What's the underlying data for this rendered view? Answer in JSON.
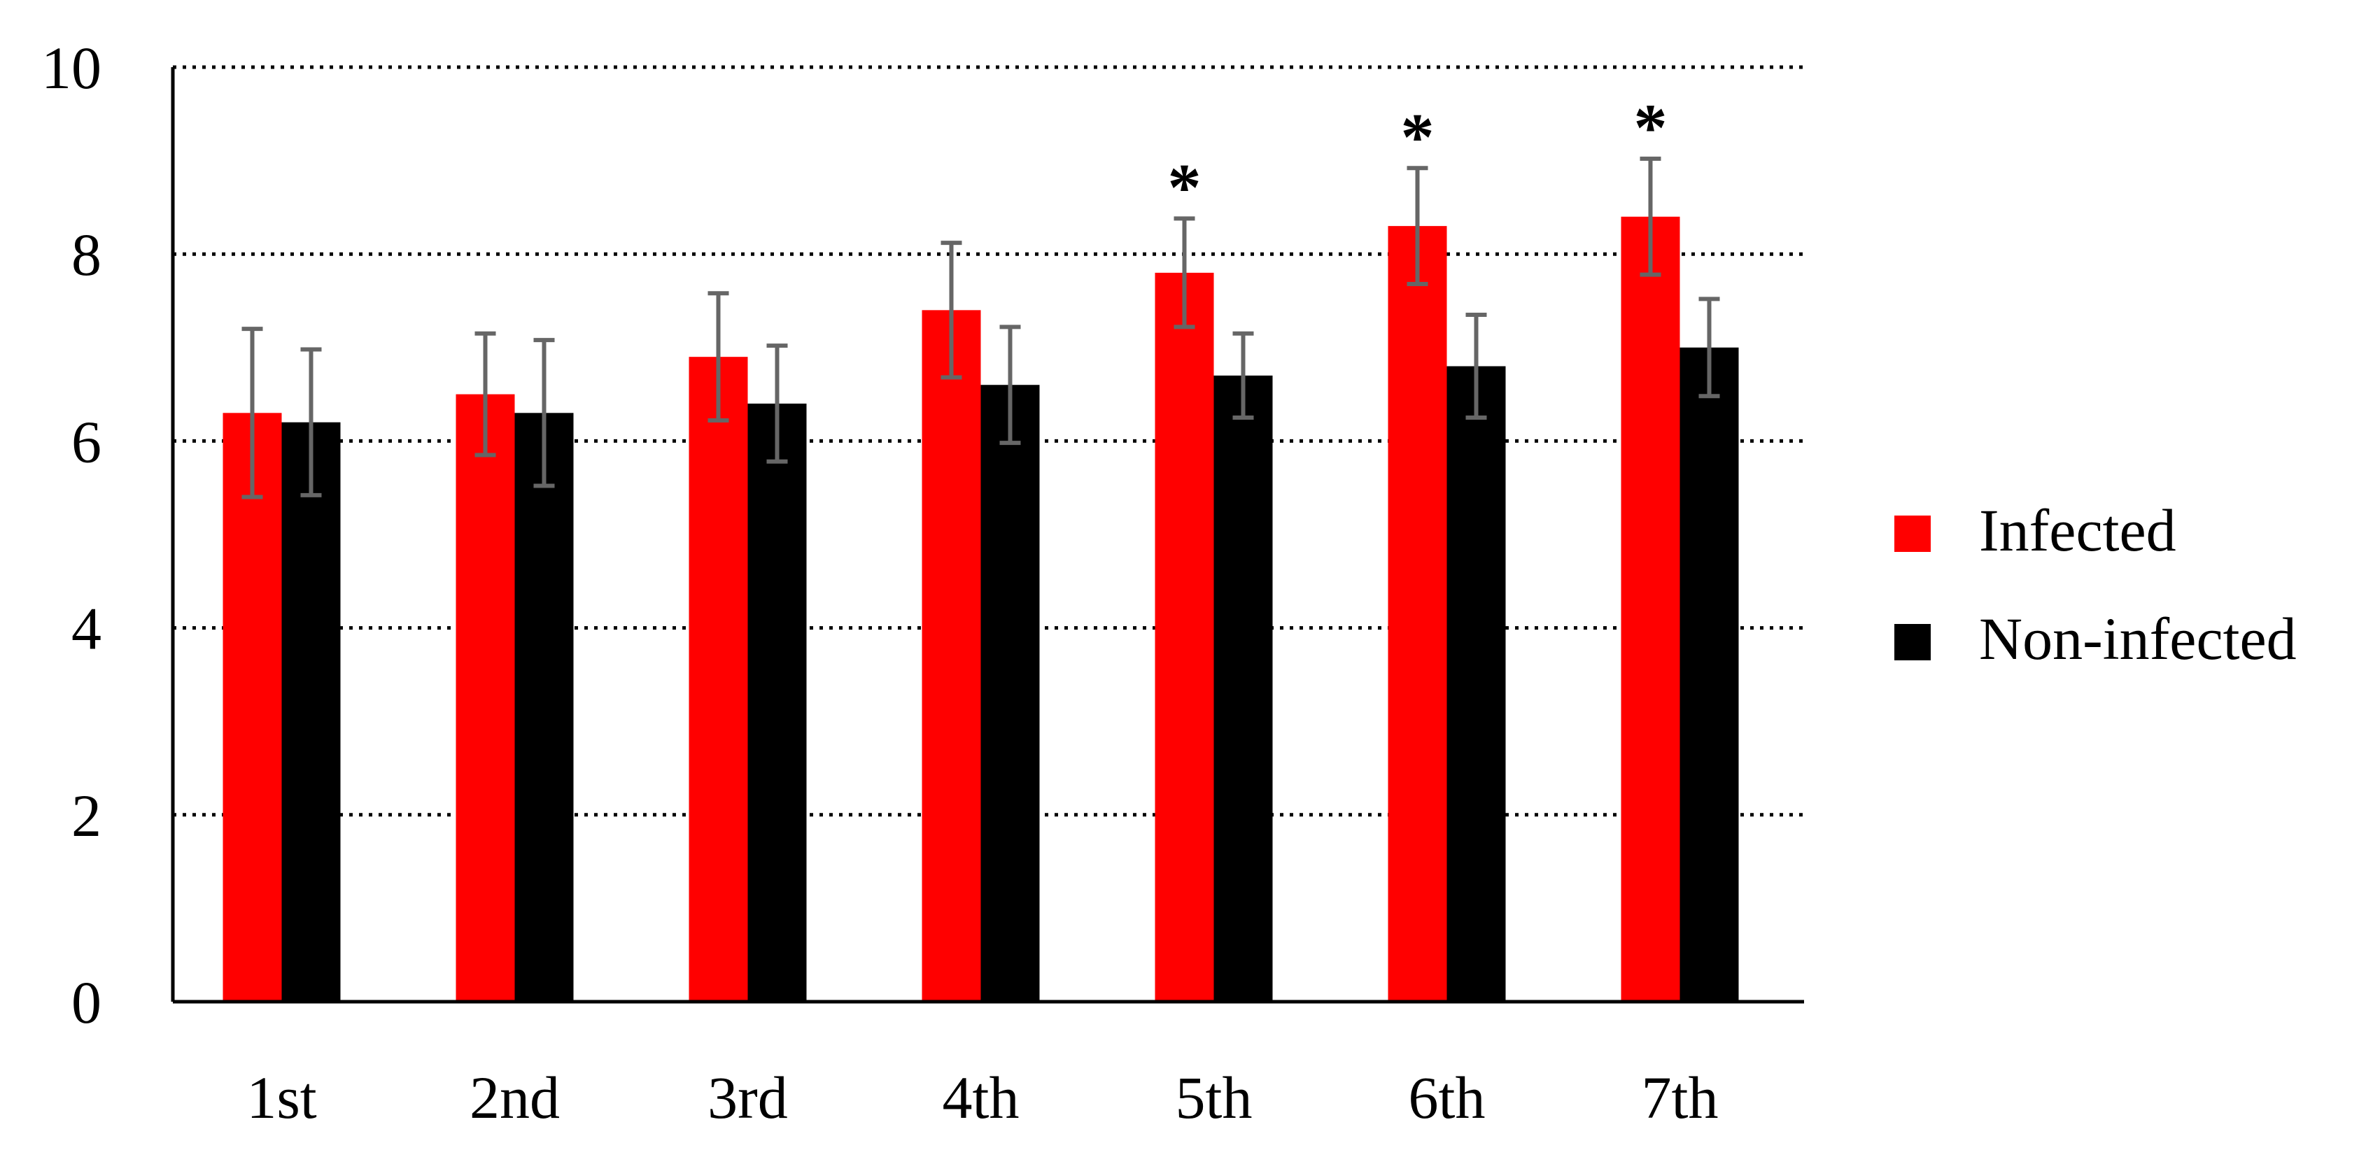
{
  "chart_data": {
    "type": "bar",
    "title": "",
    "xlabel": "",
    "ylabel": "",
    "ylim": [
      0,
      10
    ],
    "yticks": [
      0,
      2,
      4,
      6,
      8,
      10
    ],
    "grid": "horizontal-dotted",
    "legend_position": "right",
    "categories": [
      "1st",
      "2nd",
      "3rd",
      "4th",
      "5th",
      "6th",
      "7th"
    ],
    "series": [
      {
        "name": "Infected",
        "color": "#ff0000",
        "values": [
          6.3,
          6.5,
          6.9,
          7.4,
          7.8,
          8.3,
          8.4
        ],
        "errors": [
          0.9,
          0.65,
          0.68,
          0.72,
          0.58,
          0.62,
          0.62
        ]
      },
      {
        "name": "Non-infected",
        "color": "#000000",
        "values": [
          6.2,
          6.3,
          6.4,
          6.6,
          6.7,
          6.8,
          7.0
        ],
        "errors": [
          0.78,
          0.78,
          0.62,
          0.62,
          0.45,
          0.55,
          0.52
        ]
      }
    ],
    "significance": [
      {
        "category": "5th",
        "mark": "*"
      },
      {
        "category": "6th",
        "mark": "*"
      },
      {
        "category": "7th",
        "mark": "*"
      }
    ],
    "error_bar_color": "#666666"
  }
}
